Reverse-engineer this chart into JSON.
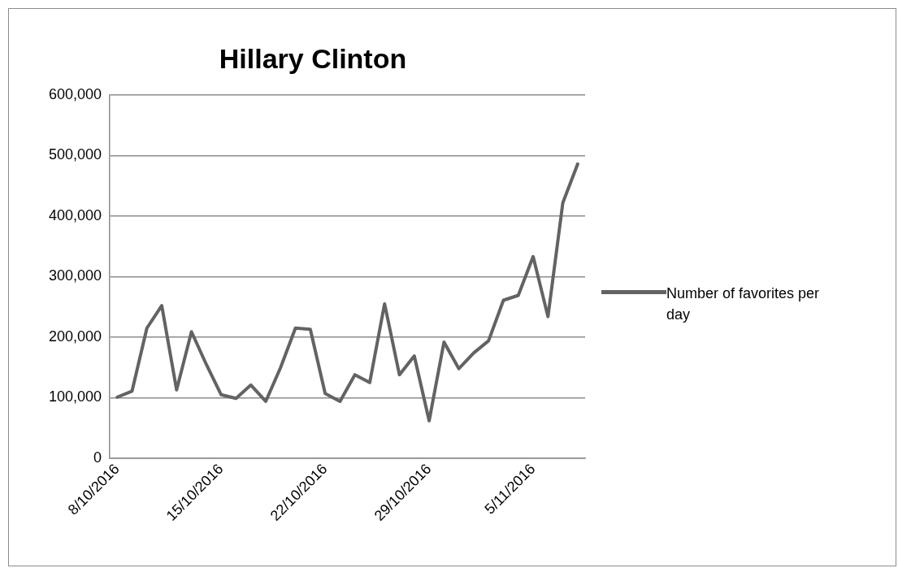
{
  "chart_data": {
    "type": "line",
    "title": "Hillary Clinton",
    "x": [
      "2016-10-08",
      "2016-10-09",
      "2016-10-10",
      "2016-10-11",
      "2016-10-12",
      "2016-10-13",
      "2016-10-14",
      "2016-10-15",
      "2016-10-16",
      "2016-10-17",
      "2016-10-18",
      "2016-10-19",
      "2016-10-20",
      "2016-10-21",
      "2016-10-22",
      "2016-10-23",
      "2016-10-24",
      "2016-10-25",
      "2016-10-26",
      "2016-10-27",
      "2016-10-28",
      "2016-10-29",
      "2016-10-30",
      "2016-10-31",
      "2016-11-01",
      "2016-11-02",
      "2016-11-03",
      "2016-11-04",
      "2016-11-05",
      "2016-11-06",
      "2016-11-07",
      "2016-11-08"
    ],
    "series": [
      {
        "name": "Number of favorites per day",
        "color": "#636363",
        "values": [
          101000,
          111000,
          215000,
          252000,
          113000,
          209000,
          155000,
          105000,
          99000,
          121000,
          94000,
          150000,
          215000,
          213000,
          107000,
          94000,
          138000,
          125000,
          255000,
          138000,
          169000,
          62000,
          192000,
          148000,
          174000,
          194000,
          261000,
          269000,
          333000,
          234000,
          422000,
          486000
        ]
      }
    ],
    "xlim": [
      "2016-10-07T12:00",
      "2016-11-08T12:00"
    ],
    "xticks": [
      {
        "value": "2016-10-08",
        "label": "8/10/2016"
      },
      {
        "value": "2016-10-15",
        "label": "15/10/2016"
      },
      {
        "value": "2016-10-22",
        "label": "22/10/2016"
      },
      {
        "value": "2016-10-29",
        "label": "29/10/2016"
      },
      {
        "value": "2016-11-05",
        "label": "5/11/2016"
      }
    ],
    "ylim": [
      0,
      600000
    ],
    "yticks": [
      {
        "value": 0,
        "label": "0"
      },
      {
        "value": 100000,
        "label": "100,000"
      },
      {
        "value": 200000,
        "label": "200,000"
      },
      {
        "value": 300000,
        "label": "300,000"
      },
      {
        "value": 400000,
        "label": "400,000"
      },
      {
        "value": 500000,
        "label": "500,000"
      },
      {
        "value": 600000,
        "label": "600,000"
      }
    ],
    "grid": "y",
    "legend": "right",
    "marker": "none",
    "line_style": "solid"
  }
}
